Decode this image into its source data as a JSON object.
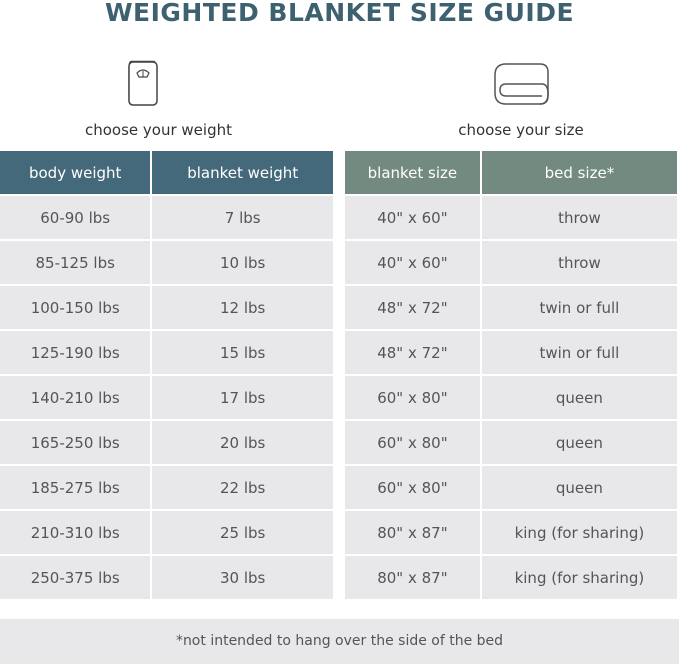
{
  "title": "WEIGHTED BLANKET SIZE GUIDE",
  "left": {
    "icon": "scale-icon",
    "caption": "choose your weight",
    "headers": [
      "body weight",
      "blanket weight"
    ],
    "rows": [
      [
        "60-90 lbs",
        "7 lbs"
      ],
      [
        "85-125 lbs",
        "10 lbs"
      ],
      [
        "100-150 lbs",
        "12 lbs"
      ],
      [
        "125-190 lbs",
        "15 lbs"
      ],
      [
        "140-210 lbs",
        "17 lbs"
      ],
      [
        "165-250 lbs",
        "20 lbs"
      ],
      [
        "185-275 lbs",
        "22 lbs"
      ],
      [
        "210-310 lbs",
        "25 lbs"
      ],
      [
        "250-375 lbs",
        "30 lbs"
      ]
    ],
    "header_color": "#44697b"
  },
  "right": {
    "icon": "folded-blanket-icon",
    "caption": "choose your size",
    "headers": [
      "blanket size",
      "bed size*"
    ],
    "rows": [
      [
        "40\" x 60\"",
        "throw"
      ],
      [
        "40\" x 60\"",
        "throw"
      ],
      [
        "48\" x 72\"",
        "twin or full"
      ],
      [
        "48\" x 72\"",
        "twin or full"
      ],
      [
        "60\" x 80\"",
        "queen"
      ],
      [
        "60\" x 80\"",
        "queen"
      ],
      [
        "60\" x 80\"",
        "queen"
      ],
      [
        "80\" x 87\"",
        "king (for sharing)"
      ],
      [
        "80\" x 87\"",
        "king (for sharing)"
      ]
    ],
    "header_color": "#738a81"
  },
  "footnote": "*not intended to hang over the side of the bed"
}
